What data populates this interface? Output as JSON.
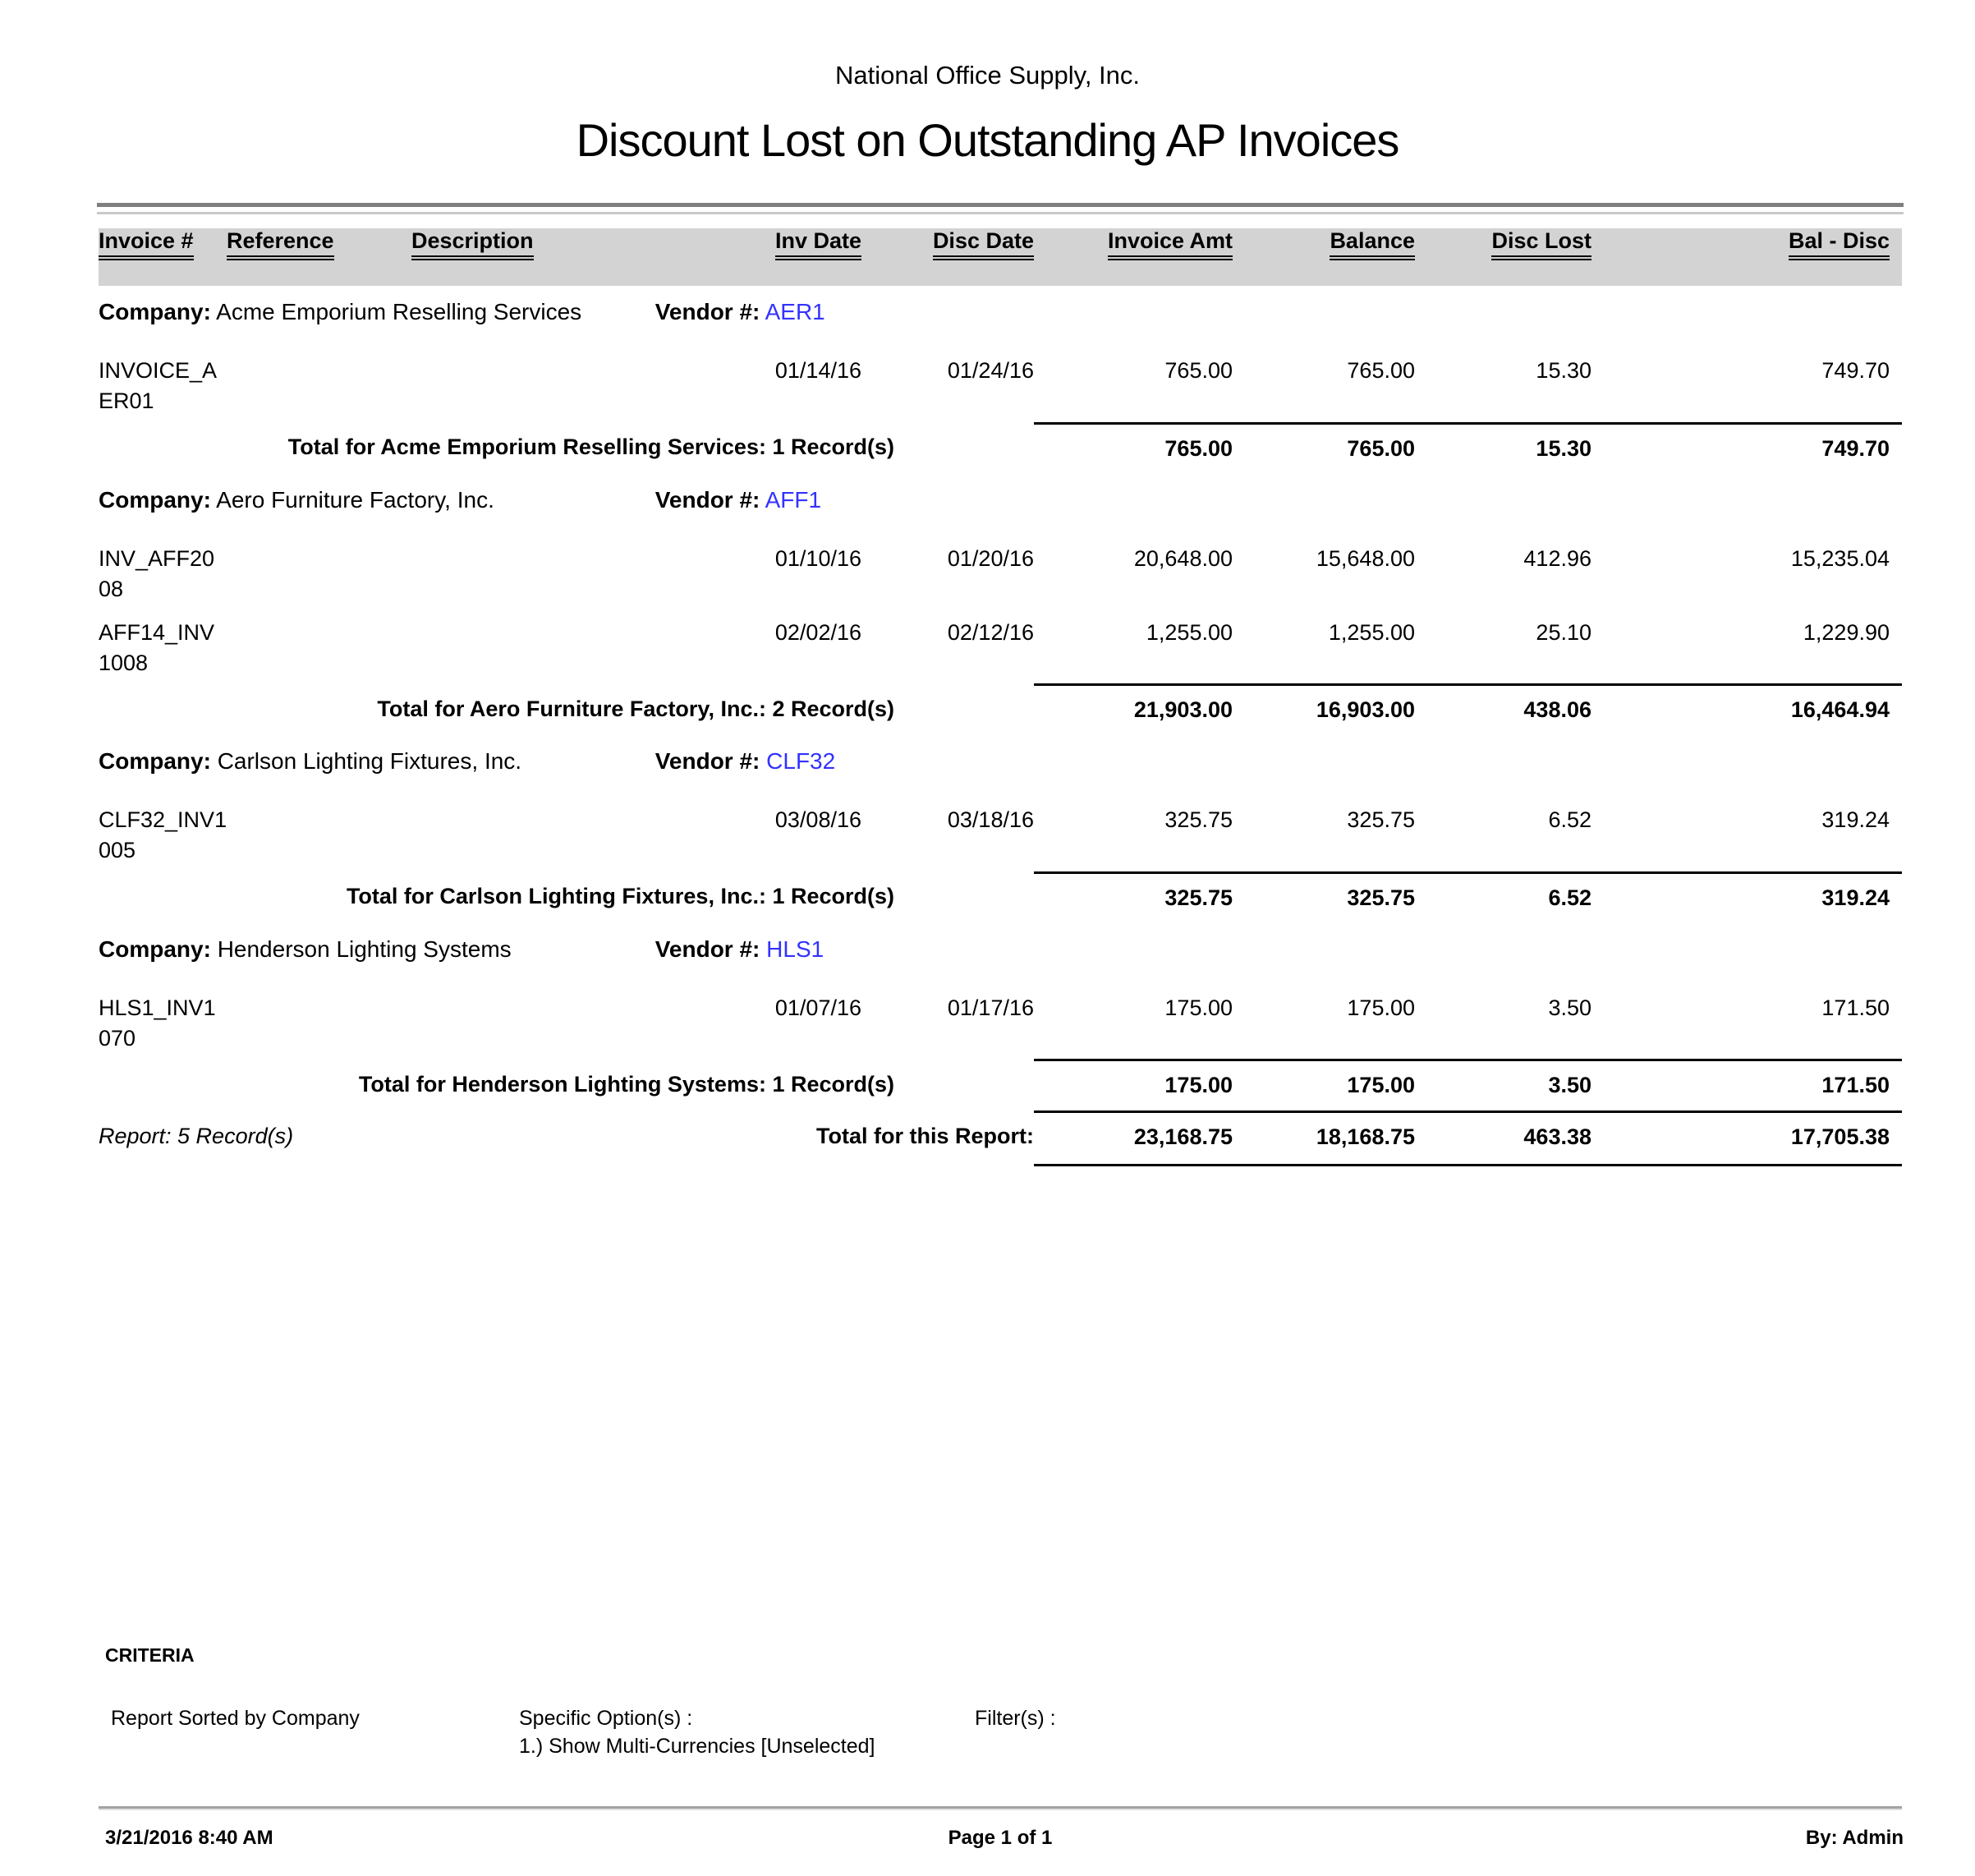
{
  "report": {
    "company_title": "National Office Supply, Inc.",
    "title": "Discount Lost on Outstanding AP Invoices",
    "labels": {
      "company": "Company:",
      "vendor": "Vendor #:"
    },
    "columns": {
      "invoice": "Invoice #",
      "reference": "Reference",
      "description": "Description",
      "inv_date": "Inv Date",
      "disc_date": "Disc Date",
      "invoice_amt": "Invoice Amt",
      "balance": "Balance",
      "disc_lost": "Disc Lost",
      "bal_disc": "Bal - Disc"
    },
    "groups": [
      {
        "company": "Acme Emporium Reselling Services",
        "vendor": "AER1",
        "rows": [
          {
            "invoice_lines": [
              "INVOICE_A",
              "ER01"
            ],
            "inv_date": "01/14/16",
            "disc_date": "01/24/16",
            "invoice_amt": "765.00",
            "balance": "765.00",
            "disc_lost": "15.30",
            "bal_disc": "749.70"
          }
        ],
        "total_label": "Total for Acme Emporium Reselling Services: 1 Record(s)",
        "total": {
          "invoice_amt": "765.00",
          "balance": "765.00",
          "disc_lost": "15.30",
          "bal_disc": "749.70"
        }
      },
      {
        "company": "Aero Furniture Factory, Inc.",
        "vendor": "AFF1",
        "rows": [
          {
            "invoice_lines": [
              "INV_AFF20",
              "08"
            ],
            "inv_date": "01/10/16",
            "disc_date": "01/20/16",
            "invoice_amt": "20,648.00",
            "balance": "15,648.00",
            "disc_lost": "412.96",
            "bal_disc": "15,235.04"
          },
          {
            "invoice_lines": [
              "AFF14_INV",
              "1008"
            ],
            "inv_date": "02/02/16",
            "disc_date": "02/12/16",
            "invoice_amt": "1,255.00",
            "balance": "1,255.00",
            "disc_lost": "25.10",
            "bal_disc": "1,229.90"
          }
        ],
        "total_label": "Total for Aero Furniture Factory, Inc.: 2 Record(s)",
        "total": {
          "invoice_amt": "21,903.00",
          "balance": "16,903.00",
          "disc_lost": "438.06",
          "bal_disc": "16,464.94"
        }
      },
      {
        "company": "Carlson Lighting Fixtures, Inc.",
        "vendor": "CLF32",
        "rows": [
          {
            "invoice_lines": [
              "CLF32_INV1",
              "005"
            ],
            "inv_date": "03/08/16",
            "disc_date": "03/18/16",
            "invoice_amt": "325.75",
            "balance": "325.75",
            "disc_lost": "6.52",
            "bal_disc": "319.24"
          }
        ],
        "total_label": "Total for Carlson Lighting Fixtures, Inc.: 1 Record(s)",
        "total": {
          "invoice_amt": "325.75",
          "balance": "325.75",
          "disc_lost": "6.52",
          "bal_disc": "319.24"
        }
      },
      {
        "company": "Henderson Lighting Systems",
        "vendor": "HLS1",
        "rows": [
          {
            "invoice_lines": [
              "HLS1_INV1",
              "070"
            ],
            "inv_date": "01/07/16",
            "disc_date": "01/17/16",
            "invoice_amt": "175.00",
            "balance": "175.00",
            "disc_lost": "3.50",
            "bal_disc": "171.50"
          }
        ],
        "total_label": "Total for Henderson Lighting Systems: 1 Record(s)",
        "total": {
          "invoice_amt": "175.00",
          "balance": "175.00",
          "disc_lost": "3.50",
          "bal_disc": "171.50"
        }
      }
    ],
    "summary": {
      "records_label": "Report: 5 Record(s)",
      "total_label": "Total for this Report:",
      "invoice_amt": "23,168.75",
      "balance": "18,168.75",
      "disc_lost": "463.38",
      "bal_disc": "17,705.38"
    },
    "criteria": {
      "heading": "CRITERIA",
      "sorted_by": "Report Sorted by Company",
      "options_label": "Specific Option(s) :",
      "option_1": "1.) Show Multi-Currencies [Unselected]",
      "filters_label": "Filter(s) :"
    },
    "footer": {
      "datetime": "3/21/2016 8:40 AM",
      "page": "Page 1 of 1",
      "by": "By: Admin"
    }
  },
  "colors": {
    "vendor_link": "#3232ff",
    "header_band": "#d3d3d3"
  }
}
